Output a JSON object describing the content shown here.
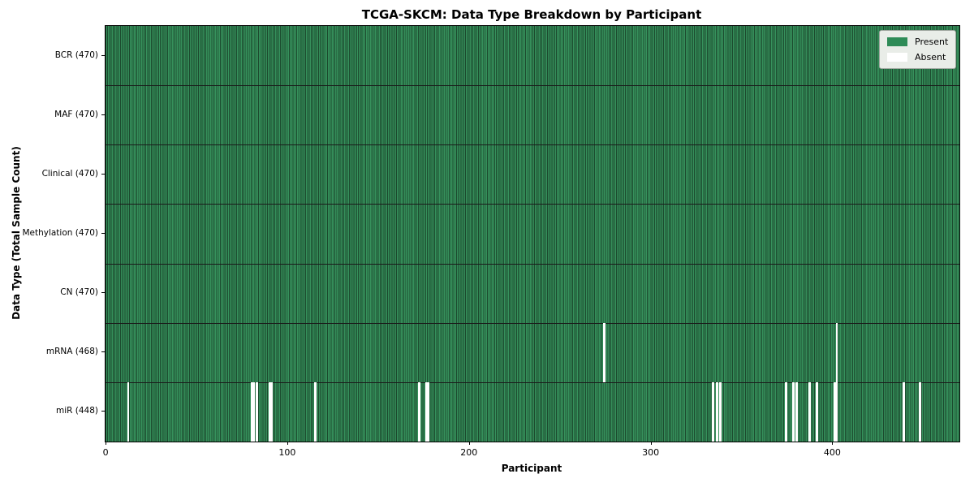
{
  "chart_data": {
    "type": "heatmap",
    "title": "TCGA-SKCM: Data Type Breakdown by Participant",
    "xlabel": "Participant",
    "ylabel": "Data Type (Total Sample Count)",
    "x_ticks": [
      0,
      100,
      200,
      300,
      400
    ],
    "n_columns": 470,
    "grid": "cell-edges-on, row-dividers-on",
    "legend": {
      "position": "upper right",
      "entries": [
        {
          "label": "Present",
          "color": "#2e8b57"
        },
        {
          "label": "Absent",
          "color": "#ffffff"
        }
      ]
    },
    "colors": {
      "present_fill": "#36915c",
      "cell_edge": "#1c4a2e",
      "row_divider": "#1a1a1a",
      "plot_border": "#000000",
      "legend_bg": "#e9ede8",
      "legend_border": "#a0a8a0",
      "absent": "#ffffff"
    },
    "rows": [
      {
        "name": "BCR",
        "label": "BCR (470)",
        "present_count": 470,
        "absent_indices": []
      },
      {
        "name": "MAF",
        "label": "MAF (470)",
        "present_count": 470,
        "absent_indices": []
      },
      {
        "name": "Clinical",
        "label": "Clinical (470)",
        "present_count": 470,
        "absent_indices": []
      },
      {
        "name": "Methylation",
        "label": "Methylation (470)",
        "present_count": 470,
        "absent_indices": []
      },
      {
        "name": "CN",
        "label": "CN (470)",
        "present_count": 470,
        "absent_indices": []
      },
      {
        "name": "mRNA",
        "label": "mRNA (468)",
        "present_count": 468,
        "absent_indices": [
          274,
          402
        ]
      },
      {
        "name": "miR",
        "label": "miR (448)",
        "present_count": 448,
        "absent_indices": [
          12,
          80,
          81,
          83,
          90,
          91,
          115,
          172,
          176,
          177,
          334,
          336,
          338,
          374,
          378,
          380,
          387,
          391,
          401,
          402,
          439,
          448
        ]
      }
    ]
  }
}
